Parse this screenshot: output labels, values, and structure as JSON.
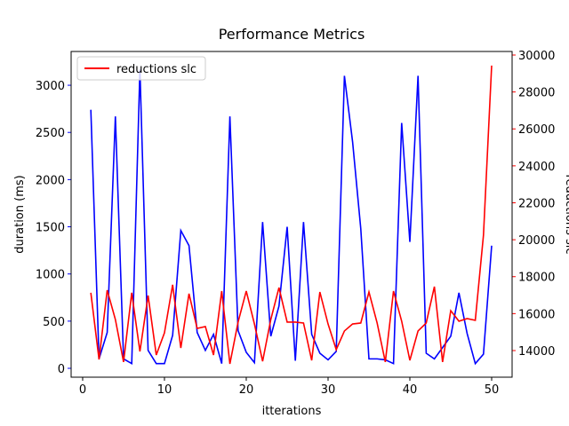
{
  "chart_data": {
    "type": "line",
    "title": "Performance Metrics",
    "xlabel": "itterations",
    "ylabel": "duration (ms)",
    "y2label": "reductions slc",
    "x": [
      1,
      2,
      3,
      4,
      5,
      6,
      7,
      8,
      9,
      10,
      11,
      12,
      13,
      14,
      15,
      16,
      17,
      18,
      19,
      20,
      21,
      22,
      23,
      24,
      25,
      26,
      27,
      28,
      29,
      30,
      31,
      32,
      33,
      34,
      35,
      36,
      37,
      38,
      39,
      40,
      41,
      42,
      43,
      44,
      45,
      46,
      47,
      48,
      49,
      50
    ],
    "series": [
      {
        "color": "#0000ff",
        "axis": "y",
        "values": [
          2740,
          100,
          380,
          2670,
          100,
          50,
          3170,
          190,
          50,
          50,
          350,
          1460,
          1300,
          380,
          190,
          360,
          50,
          2670,
          400,
          170,
          60,
          1550,
          340,
          660,
          1500,
          80,
          1550,
          360,
          160,
          90,
          180,
          3100,
          2400,
          1480,
          100,
          100,
          90,
          50,
          2600,
          1340,
          3100,
          160,
          100,
          220,
          340,
          800,
          370,
          50,
          150,
          1300
        ]
      },
      {
        "name": "reductions slc",
        "color": "#ff0000",
        "axis": "y2",
        "values": [
          17130,
          13520,
          17270,
          15680,
          13380,
          17130,
          13950,
          16980,
          13760,
          14960,
          17560,
          14140,
          17080,
          15200,
          15300,
          13760,
          17220,
          13280,
          15540,
          17220,
          15440,
          13420,
          15680,
          17410,
          15540,
          15540,
          15490,
          13470,
          17170,
          15440,
          14050,
          15060,
          15440,
          15490,
          17170,
          15490,
          13380,
          17220,
          15590,
          13470,
          15060,
          15490,
          17460,
          13380,
          16160,
          15590,
          15730,
          15640,
          20250,
          29430
        ]
      }
    ],
    "xlim": [
      -1.41,
      52.5
    ],
    "xticks": [
      0,
      10,
      20,
      30,
      40,
      50
    ],
    "ylim": [
      -94,
      3358
    ],
    "yticks": [
      0,
      500,
      1000,
      1500,
      2000,
      2500,
      3000
    ],
    "y2lim": [
      12558,
      30192
    ],
    "y2ticks": [
      14000,
      16000,
      18000,
      20000,
      22000,
      24000,
      26000,
      28000,
      30000
    ],
    "legend": "upper left"
  }
}
